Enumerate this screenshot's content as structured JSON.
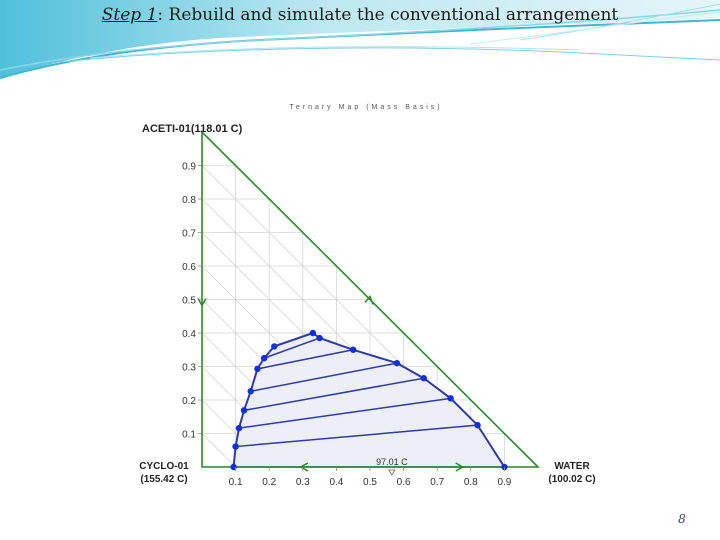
{
  "slide": {
    "title_part1": "Step 1",
    "title_part2": ": Rebuild and simulate the conventional arrangement",
    "page_number": "8"
  },
  "colors": {
    "banner_light": "#dff4f8",
    "banner_mid": "#5fc7de",
    "triangle": "#2a8a2a",
    "grid": "#d4d4d4",
    "tie_lines": "#2f3aa6",
    "envelope": "#2f3aa6",
    "points": "#1030d8",
    "region_fill": "#eceef8"
  },
  "chart_data": {
    "type": "scatter",
    "title": "Ternary Map (Mass Basis)",
    "vertices": {
      "top": "ACETI-01(118.01 C)",
      "left_top": "CYCLO-01",
      "left_bottom": "(155.42 C)",
      "right_top": "WATER",
      "right_bottom": "(100.02 C)"
    },
    "axis_ticks_y": [
      "0.1",
      "0.2",
      "0.3",
      "0.4",
      "0.5",
      "0.6",
      "0.7",
      "0.8",
      "0.9"
    ],
    "axis_ticks_x": [
      "0.1",
      "0.2",
      "0.3",
      "0.4",
      "0.5",
      "0.6",
      "0.7",
      "0.8",
      "0.9"
    ],
    "azeotrope_label": "97.01 C",
    "azeotrope_x": 0.565,
    "envelope": [
      [
        0.094,
        0.0
      ],
      [
        0.1,
        0.061
      ],
      [
        0.11,
        0.116
      ],
      [
        0.125,
        0.169
      ],
      [
        0.145,
        0.226
      ],
      [
        0.165,
        0.293
      ],
      [
        0.185,
        0.325
      ],
      [
        0.215,
        0.36
      ],
      [
        0.33,
        0.4
      ],
      [
        0.35,
        0.385
      ],
      [
        0.45,
        0.35
      ],
      [
        0.58,
        0.31
      ],
      [
        0.66,
        0.265
      ],
      [
        0.74,
        0.205
      ],
      [
        0.82,
        0.125
      ],
      [
        0.9,
        0.0
      ]
    ],
    "points": [
      [
        0.094,
        0.0
      ],
      [
        0.1,
        0.061
      ],
      [
        0.11,
        0.116
      ],
      [
        0.125,
        0.169
      ],
      [
        0.145,
        0.226
      ],
      [
        0.165,
        0.293
      ],
      [
        0.185,
        0.325
      ],
      [
        0.215,
        0.36
      ],
      [
        0.33,
        0.4
      ],
      [
        0.35,
        0.385
      ],
      [
        0.45,
        0.35
      ],
      [
        0.58,
        0.31
      ],
      [
        0.66,
        0.265
      ],
      [
        0.74,
        0.205
      ],
      [
        0.82,
        0.125
      ],
      [
        0.9,
        0.0
      ]
    ],
    "tie_lines": [
      [
        [
          0.094,
          0.0
        ],
        [
          0.9,
          0.0
        ]
      ],
      [
        [
          0.1,
          0.061
        ],
        [
          0.82,
          0.125
        ]
      ],
      [
        [
          0.11,
          0.116
        ],
        [
          0.74,
          0.205
        ]
      ],
      [
        [
          0.125,
          0.169
        ],
        [
          0.66,
          0.265
        ]
      ],
      [
        [
          0.145,
          0.226
        ],
        [
          0.58,
          0.31
        ]
      ],
      [
        [
          0.165,
          0.293
        ],
        [
          0.45,
          0.35
        ]
      ],
      [
        [
          0.185,
          0.325
        ],
        [
          0.35,
          0.385
        ]
      ],
      [
        [
          0.215,
          0.36
        ],
        [
          0.33,
          0.4
        ]
      ]
    ]
  }
}
